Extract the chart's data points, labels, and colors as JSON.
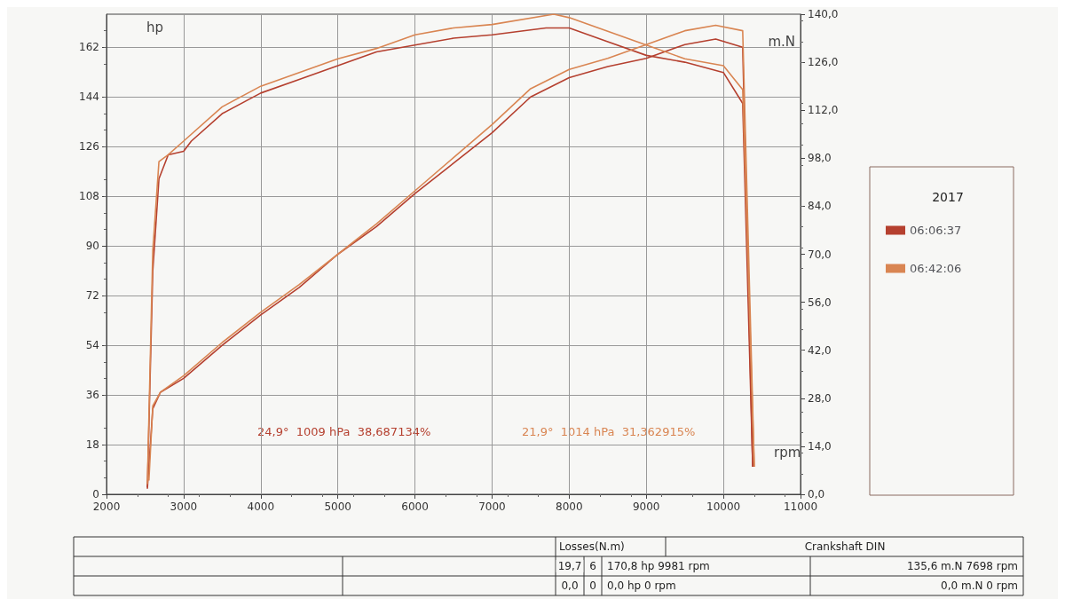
{
  "chart_data": {
    "type": "line",
    "xlabel": "rpm",
    "ylabel": "hp",
    "y2label": "m.N",
    "xlim": [
      2000,
      11000
    ],
    "xticks": [
      2000,
      3000,
      4000,
      5000,
      6000,
      7000,
      8000,
      9000,
      10000,
      11000
    ],
    "ylim": [
      0,
      174
    ],
    "yticks": [
      0,
      18,
      36,
      54,
      72,
      90,
      108,
      126,
      144,
      162
    ],
    "y2lim": [
      0,
      140
    ],
    "y2ticks": [
      {
        "value": 0,
        "label": "0,0"
      },
      {
        "value": 14,
        "label": "14,0"
      },
      {
        "value": 28,
        "label": "28,0"
      },
      {
        "value": 42,
        "label": "42,0"
      },
      {
        "value": 56,
        "label": "56,0"
      },
      {
        "value": 70,
        "label": "70,0"
      },
      {
        "value": 84,
        "label": "84,0"
      },
      {
        "value": 98,
        "label": "98,0"
      },
      {
        "value": 112,
        "label": "112,0"
      },
      {
        "value": 126,
        "label": "126,0"
      },
      {
        "value": 140,
        "label": "140,0"
      }
    ],
    "grid": true,
    "legend": "right",
    "marker": "none",
    "line_style": "solid",
    "series": [
      {
        "name": "06:06:37",
        "color": "#b5402f",
        "x": [
          2530,
          2600,
          2700,
          3000,
          3500,
          4000,
          4500,
          5000,
          5500,
          6000,
          6500,
          7000,
          7500,
          8000,
          8500,
          9000,
          9500,
          9900,
          10250,
          10380
        ],
        "values": [
          2,
          31,
          37,
          42,
          54,
          65,
          75,
          87,
          97,
          109,
          120,
          131,
          144,
          151,
          155,
          158,
          163,
          165,
          162,
          10
        ]
      },
      {
        "color": "#b5402f",
        "axis": "y2",
        "x": [
          2530,
          2600,
          2680,
          2800,
          3000,
          3100,
          3500,
          4000,
          4500,
          5000,
          5500,
          6000,
          6500,
          7000,
          7700,
          8000,
          8500,
          9000,
          9500,
          10000,
          10250,
          10380
        ],
        "values": [
          2,
          65,
          92,
          99,
          100,
          103,
          111,
          117,
          121,
          125,
          129,
          131,
          133,
          134,
          136,
          136,
          132,
          128,
          126,
          123,
          114,
          8
        ]
      },
      {
        "name": "06:42:06",
        "color": "#d98552",
        "x": [
          2550,
          2600,
          2700,
          3000,
          3500,
          4000,
          4500,
          5000,
          5500,
          6000,
          6500,
          7000,
          7500,
          8000,
          8500,
          9000,
          9500,
          9900,
          10250,
          10400
        ],
        "values": [
          5,
          32,
          37,
          43,
          55,
          66,
          76,
          87,
          98,
          110,
          122,
          134,
          147,
          154,
          158,
          163,
          168,
          170,
          168,
          10
        ]
      },
      {
        "color": "#d98552",
        "axis": "y2",
        "x": [
          2530,
          2600,
          2680,
          2800,
          3000,
          3500,
          4000,
          4500,
          5000,
          5500,
          6000,
          6500,
          7000,
          7800,
          8000,
          8500,
          9000,
          9500,
          10000,
          10250,
          10400
        ],
        "values": [
          3,
          71,
          97,
          99,
          103,
          113,
          119,
          123,
          127,
          130,
          134,
          136,
          137,
          140,
          139,
          135,
          131,
          127,
          125,
          118,
          8
        ]
      }
    ],
    "annotations": [
      "24,9°  1009 hPa  38,687134%",
      "21,9°  1014 hPa  31,362915%",
      "2017",
      "Losses(N.m)",
      "Crankshaft DIN",
      "19,7",
      "6",
      "170,8 hp 9981 rpm",
      "135,6 m.N 7698 rpm",
      "0,0",
      "0",
      "0,0 hp 0 rpm",
      "0,0 m.N 0 rpm"
    ]
  }
}
